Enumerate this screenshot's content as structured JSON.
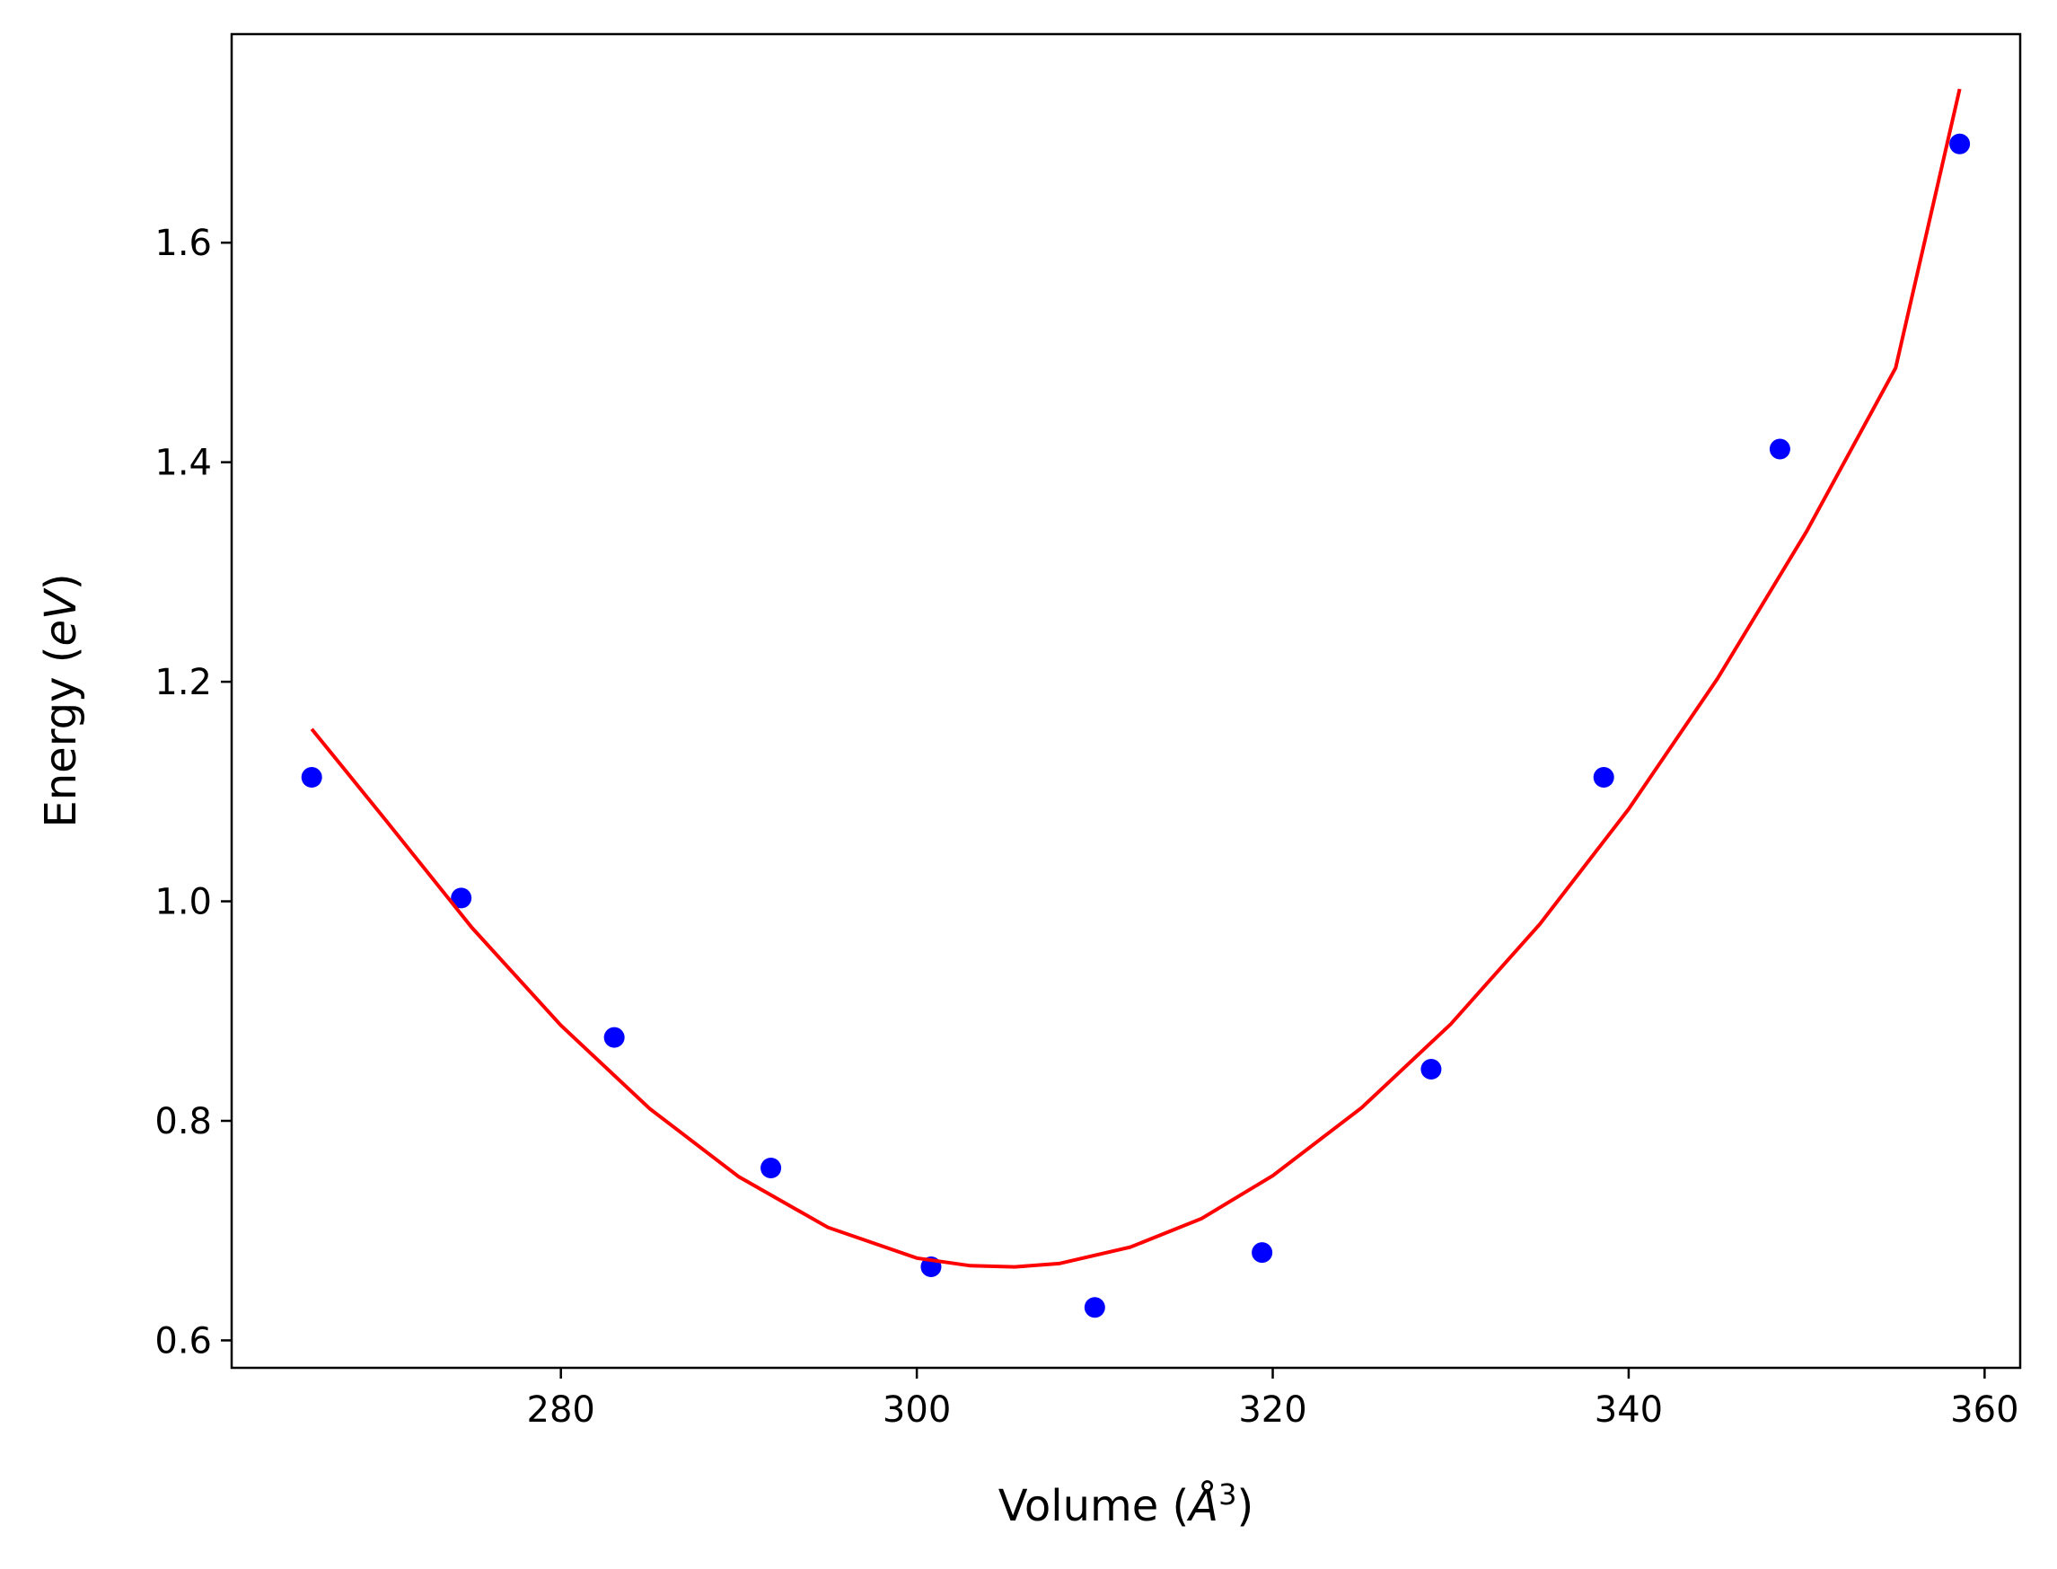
{
  "chart_data": {
    "type": "scatter",
    "title": "",
    "xlabel": {
      "prefix": "Volume (",
      "symbol": "Å",
      "superscript": "3",
      "suffix": ")"
    },
    "ylabel": {
      "prefix": "Energy (",
      "unit": "eV",
      "suffix": ")"
    },
    "xlim": [
      261.5,
      362.0
    ],
    "ylim": [
      0.575,
      1.79
    ],
    "xticks": [
      280,
      300,
      320,
      340,
      360
    ],
    "yticks": [
      0.6,
      0.8,
      1.0,
      1.2,
      1.4,
      1.6
    ],
    "grid": false,
    "series": [
      {
        "kind": "scatter",
        "color": "#0000ff",
        "points": [
          [
            266.0,
            1.113
          ],
          [
            274.4,
            1.003
          ],
          [
            283.0,
            0.876
          ],
          [
            291.8,
            0.757
          ],
          [
            300.8,
            0.667
          ],
          [
            310.0,
            0.63
          ],
          [
            319.4,
            0.68
          ],
          [
            328.9,
            0.847
          ],
          [
            338.6,
            1.113
          ],
          [
            348.5,
            1.412
          ],
          [
            358.6,
            1.69
          ]
        ]
      },
      {
        "kind": "line",
        "color": "#ff0000",
        "x": [
          266.0,
          270.0,
          275.0,
          280.0,
          285.0,
          290.0,
          295.0,
          300.0,
          303.0,
          305.5,
          308.0,
          312.0,
          316.0,
          320.0,
          325.0,
          330.0,
          335.0,
          340.0,
          345.0,
          350.0,
          355.0,
          358.6
        ],
        "y": [
          1.157,
          1.077,
          0.976,
          0.887,
          0.811,
          0.749,
          0.703,
          0.675,
          0.668,
          0.667,
          0.67,
          0.685,
          0.711,
          0.75,
          0.812,
          0.888,
          0.979,
          1.084,
          1.203,
          1.337,
          1.486,
          1.74
        ]
      }
    ]
  }
}
